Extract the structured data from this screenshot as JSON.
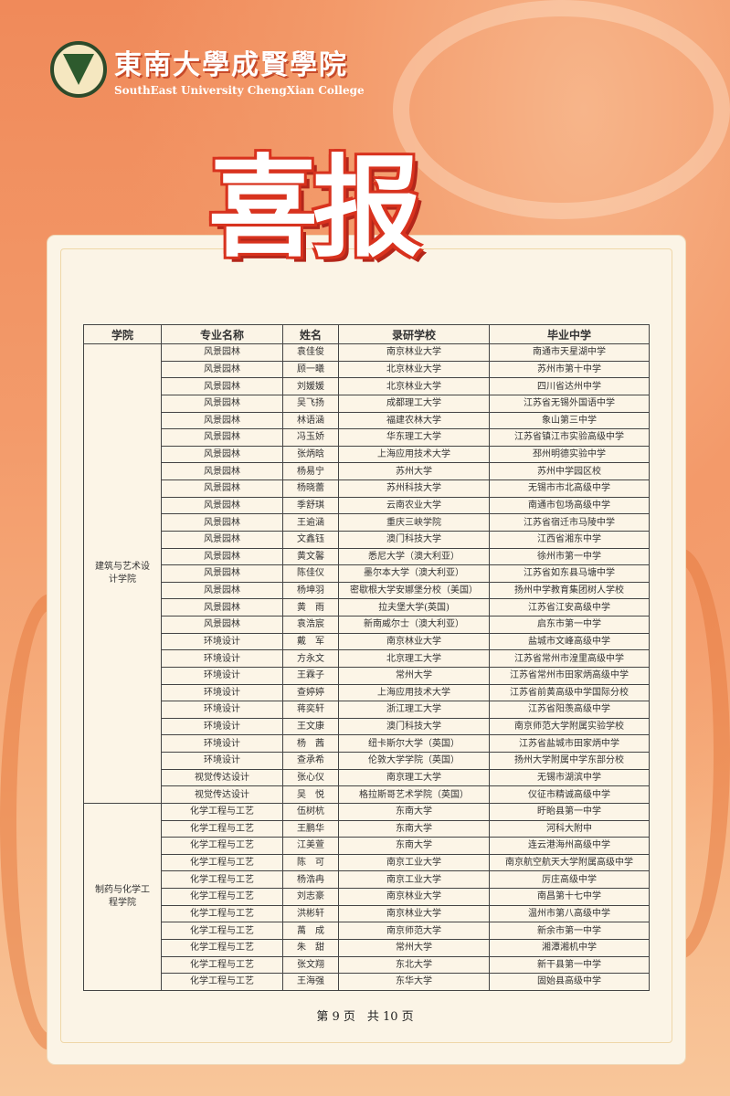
{
  "header": {
    "college_cn": "東南大學成賢學院",
    "college_en": "SouthEast University ChengXian College",
    "title": "喜报"
  },
  "colors": {
    "background": "#f39b6b",
    "panel": "#fbf4e6",
    "title_outline": "#d8321e"
  },
  "table": {
    "columns": [
      "学院",
      "专业名称",
      "姓名",
      "录研学校",
      "毕业中学"
    ],
    "groups": [
      {
        "college": "建筑与艺术设计学院",
        "rows": [
          [
            "风景园林",
            "袁佳俊",
            "南京林业大学",
            "南通市天星湖中学"
          ],
          [
            "风景园林",
            "顾一曦",
            "北京林业大学",
            "苏州市第十中学"
          ],
          [
            "风景园林",
            "刘媛媛",
            "北京林业大学",
            "四川省达州中学"
          ],
          [
            "风景园林",
            "吴飞扬",
            "成都理工大学",
            "江苏省无锡外国语中学"
          ],
          [
            "风景园林",
            "林语涵",
            "福建农林大学",
            "象山第三中学"
          ],
          [
            "风景园林",
            "冯玉娇",
            "华东理工大学",
            "江苏省镇江市实验高级中学"
          ],
          [
            "风景园林",
            "张炳晗",
            "上海应用技术大学",
            "邳州明德实验中学"
          ],
          [
            "风景园林",
            "杨易宁",
            "苏州大学",
            "苏州中学园区校"
          ],
          [
            "风景园林",
            "杨晓蕾",
            "苏州科技大学",
            "无锡市市北高级中学"
          ],
          [
            "风景园林",
            "季舒琪",
            "云南农业大学",
            "南通市包场高级中学"
          ],
          [
            "风景园林",
            "王逾涵",
            "重庆三峡学院",
            "江苏省宿迁市马陵中学"
          ],
          [
            "风景园林",
            "文鑫钰",
            "澳门科技大学",
            "江西省湘东中学"
          ],
          [
            "风景园林",
            "黄文馨",
            "悉尼大学（澳大利亚）",
            "徐州市第一中学"
          ],
          [
            "风景园林",
            "陈佳仪",
            "墨尔本大学（澳大利亚）",
            "江苏省如东县马塘中学"
          ],
          [
            "风景园林",
            "杨坤羽",
            "密歇根大学安娜堡分校（美国）",
            "扬州中学教育集团树人学校"
          ],
          [
            "风景园林",
            "黄　雨",
            "拉夫堡大学(英国)",
            "江苏省江安高级中学"
          ],
          [
            "风景园林",
            "袁浩宸",
            "新南威尔士（澳大利亚）",
            "启东市第一中学"
          ],
          [
            "环境设计",
            "戴　军",
            "南京林业大学",
            "盐城市文峰高级中学"
          ],
          [
            "环境设计",
            "方永文",
            "北京理工大学",
            "江苏省常州市湟里高级中学"
          ],
          [
            "环境设计",
            "王霖子",
            "常州大学",
            "江苏省常州市田家炳高级中学"
          ],
          [
            "环境设计",
            "查婷婷",
            "上海应用技术大学",
            "江苏省前黄高级中学国际分校"
          ],
          [
            "环境设计",
            "蒋奕轩",
            "浙江理工大学",
            "江苏省阳羡高级中学"
          ],
          [
            "环境设计",
            "王文康",
            "澳门科技大学",
            "南京师范大学附属实验学校"
          ],
          [
            "环境设计",
            "杨　茜",
            "纽卡斯尔大学（英国）",
            "江苏省盐城市田家炳中学"
          ],
          [
            "环境设计",
            "查承希",
            "伦敦大学学院（英国）",
            "扬州大学附属中学东部分校"
          ],
          [
            "视觉传达设计",
            "张心仪",
            "南京理工大学",
            "无锡市湖滨中学"
          ],
          [
            "视觉传达设计",
            "吴　悦",
            "格拉斯哥艺术学院（英国）",
            "仪征市精诚高级中学"
          ]
        ]
      },
      {
        "college": "制药与化学工程学院",
        "rows": [
          [
            "化学工程与工艺",
            "伍树杭",
            "东南大学",
            "盱眙县第一中学"
          ],
          [
            "化学工程与工艺",
            "王鹏华",
            "东南大学",
            "河科大附中"
          ],
          [
            "化学工程与工艺",
            "江美萱",
            "东南大学",
            "连云港海州高级中学"
          ],
          [
            "化学工程与工艺",
            "陈　可",
            "南京工业大学",
            "南京航空航天大学附属高级中学"
          ],
          [
            "化学工程与工艺",
            "杨浩冉",
            "南京工业大学",
            "厉庄高级中学"
          ],
          [
            "化学工程与工艺",
            "刘志豪",
            "南京林业大学",
            "南昌第十七中学"
          ],
          [
            "化学工程与工艺",
            "洪彬轩",
            "南京林业大学",
            "温州市第八高级中学"
          ],
          [
            "化学工程与工艺",
            "萬　成",
            "南京师范大学",
            "新余市第一中学"
          ],
          [
            "化学工程与工艺",
            "朱　甜",
            "常州大学",
            "湘潭湘机中学"
          ],
          [
            "化学工程与工艺",
            "张文翔",
            "东北大学",
            "新干县第一中学"
          ],
          [
            "化学工程与工艺",
            "王海强",
            "东华大学",
            "固始县高级中学"
          ]
        ]
      }
    ]
  },
  "footer": {
    "page": "第 9 页　共 10 页"
  }
}
